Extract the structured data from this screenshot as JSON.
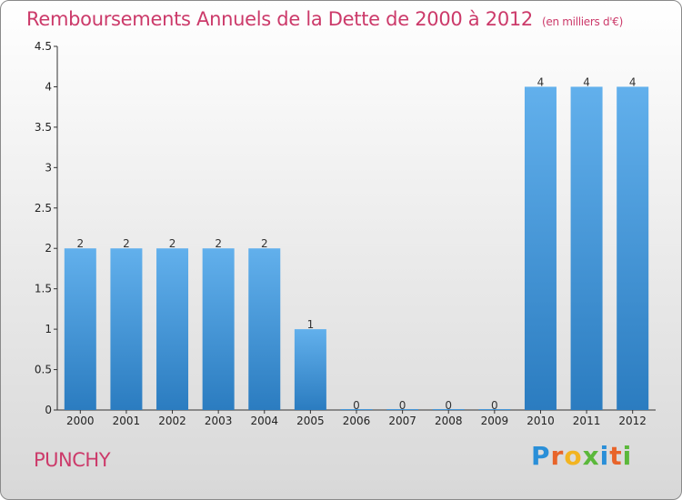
{
  "title": {
    "main": "Remboursements Annuels de la Dette de 2000 à 2012",
    "unit": "(en milliers d'€)"
  },
  "commune": "PUNCHY",
  "logo": {
    "letters": [
      "P",
      "r",
      "o",
      "x",
      "i",
      "t",
      "i"
    ],
    "text": "Proxiti"
  },
  "colors": {
    "title": "#cc3a6a",
    "bar_light": "#62b0ec",
    "bar_dark": "#2b7cc0",
    "axis": "#333333"
  },
  "chart_data": {
    "type": "bar",
    "title": "Remboursements Annuels de la Dette de 2000 à 2012",
    "ylabel": "",
    "xlabel": "",
    "categories": [
      "2000",
      "2001",
      "2002",
      "2003",
      "2004",
      "2005",
      "2006",
      "2007",
      "2008",
      "2009",
      "2010",
      "2011",
      "2012"
    ],
    "values": [
      2,
      2,
      2,
      2,
      2,
      1,
      0,
      0,
      0,
      0,
      4,
      4,
      4
    ],
    "data_labels": [
      "2",
      "2",
      "2",
      "2",
      "2",
      "1",
      "0",
      "0",
      "0",
      "0",
      "4",
      "4",
      "4"
    ],
    "ylim": [
      0,
      4.5
    ],
    "yticks": [
      0,
      0.5,
      1,
      1.5,
      2,
      2.5,
      3,
      3.5,
      4,
      4.5
    ],
    "ytick_labels": [
      "0",
      "0.5",
      "1",
      "1.5",
      "2",
      "2.5",
      "3",
      "3.5",
      "4",
      "4.5"
    ],
    "grid": false,
    "legend": "none"
  }
}
